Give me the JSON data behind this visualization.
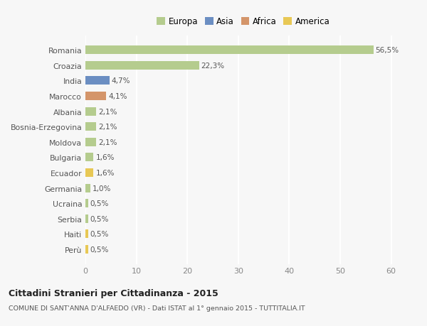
{
  "countries": [
    "Romania",
    "Croazia",
    "India",
    "Marocco",
    "Albania",
    "Bosnia-Erzegovina",
    "Moldova",
    "Bulgaria",
    "Ecuador",
    "Germania",
    "Ucraina",
    "Serbia",
    "Haiti",
    "Perù"
  ],
  "values": [
    56.5,
    22.3,
    4.7,
    4.1,
    2.1,
    2.1,
    2.1,
    1.6,
    1.6,
    1.0,
    0.5,
    0.5,
    0.5,
    0.5
  ],
  "labels": [
    "56,5%",
    "22,3%",
    "4,7%",
    "4,1%",
    "2,1%",
    "2,1%",
    "2,1%",
    "1,6%",
    "1,6%",
    "1,0%",
    "0,5%",
    "0,5%",
    "0,5%",
    "0,5%"
  ],
  "colors": [
    "#b5cc8e",
    "#b5cc8e",
    "#6b8ec2",
    "#d4956a",
    "#b5cc8e",
    "#b5cc8e",
    "#b5cc8e",
    "#b5cc8e",
    "#e8c855",
    "#b5cc8e",
    "#b5cc8e",
    "#b5cc8e",
    "#e8c855",
    "#e8c855"
  ],
  "legend_labels": [
    "Europa",
    "Asia",
    "Africa",
    "America"
  ],
  "legend_colors": [
    "#b5cc8e",
    "#6b8ec2",
    "#d4956a",
    "#e8c855"
  ],
  "title": "Cittadini Stranieri per Cittadinanza - 2015",
  "subtitle": "COMUNE DI SANT'ANNA D'ALFAEDO (VR) - Dati ISTAT al 1° gennaio 2015 - TUTTITALIA.IT",
  "xlim": [
    0,
    62
  ],
  "xticks": [
    0,
    10,
    20,
    30,
    40,
    50,
    60
  ],
  "bg_color": "#f7f7f7",
  "bar_height": 0.55
}
